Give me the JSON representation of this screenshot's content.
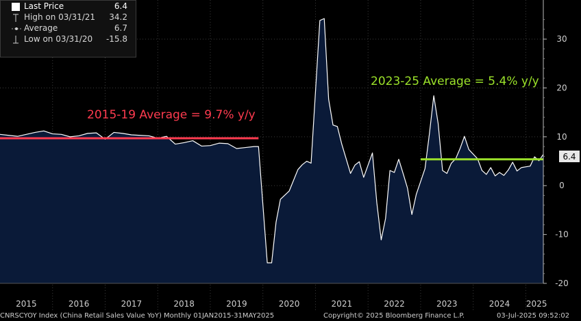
{
  "legend": {
    "last_price_label": "Last Price",
    "last_price_value": "6.4",
    "high_label": "High on 03/31/21",
    "high_value": "34.2",
    "average_label": "Average",
    "average_value": "6.7",
    "low_label": "Low on 03/31/20",
    "low_value": "-15.8"
  },
  "footer": {
    "source": "CNRSCYOY Index (China Retail Sales Value YoY)  Monthly 01JAN2015-31MAY2025",
    "copyright": "Copyright© 2025 Bloomberg Finance L.P.",
    "timestamp": "03-Jul-2025 09:52:02"
  },
  "colors": {
    "area": "#0a1a38",
    "line": "#ffffff",
    "avg1519": "#ff3b4f",
    "avg2325": "#9be22a",
    "bg": "#000000"
  },
  "chart_data": {
    "type": "area",
    "title": "",
    "series_name": "China Retail Sales Value YoY",
    "xlabel": "",
    "ylabel": "",
    "ylim": [
      -20,
      38
    ],
    "y_ticks": [
      -20,
      -10,
      0,
      10,
      20,
      30
    ],
    "year_labels": [
      "2015",
      "2016",
      "2017",
      "2018",
      "2019",
      "2020",
      "2021",
      "2022",
      "2023",
      "2024",
      "2025"
    ],
    "x_start": "2015-01",
    "x_end": "2025-05",
    "last_value_label": "6.4",
    "points": [
      [
        "2015-01",
        10.5
      ],
      [
        "2015-03",
        10.3
      ],
      [
        "2015-05",
        10.1
      ],
      [
        "2015-07",
        10.5
      ],
      [
        "2015-09",
        10.9
      ],
      [
        "2015-11",
        11.2
      ],
      [
        "2016-01",
        10.6
      ],
      [
        "2016-03",
        10.5
      ],
      [
        "2016-05",
        10.0
      ],
      [
        "2016-07",
        10.2
      ],
      [
        "2016-09",
        10.7
      ],
      [
        "2016-11",
        10.8
      ],
      [
        "2017-01",
        9.5
      ],
      [
        "2017-03",
        10.9
      ],
      [
        "2017-05",
        10.7
      ],
      [
        "2017-07",
        10.4
      ],
      [
        "2017-09",
        10.3
      ],
      [
        "2017-11",
        10.2
      ],
      [
        "2018-01",
        9.7
      ],
      [
        "2018-03",
        10.1
      ],
      [
        "2018-05",
        8.5
      ],
      [
        "2018-07",
        8.8
      ],
      [
        "2018-09",
        9.2
      ],
      [
        "2018-11",
        8.1
      ],
      [
        "2019-01",
        8.2
      ],
      [
        "2019-03",
        8.7
      ],
      [
        "2019-05",
        8.6
      ],
      [
        "2019-07",
        7.6
      ],
      [
        "2019-09",
        7.8
      ],
      [
        "2019-11",
        8.0
      ],
      [
        "2019-12",
        8.0
      ],
      [
        "2020-02",
        -15.8
      ],
      [
        "2020-03",
        -15.8
      ],
      [
        "2020-04",
        -7.5
      ],
      [
        "2020-05",
        -2.8
      ],
      [
        "2020-07",
        -1.1
      ],
      [
        "2020-09",
        3.3
      ],
      [
        "2020-10",
        4.3
      ],
      [
        "2020-11",
        5.0
      ],
      [
        "2020-12",
        4.6
      ],
      [
        "2021-02",
        33.8
      ],
      [
        "2021-03",
        34.2
      ],
      [
        "2021-04",
        17.7
      ],
      [
        "2021-05",
        12.4
      ],
      [
        "2021-06",
        12.1
      ],
      [
        "2021-07",
        8.5
      ],
      [
        "2021-09",
        2.5
      ],
      [
        "2021-10",
        4.2
      ],
      [
        "2021-11",
        4.9
      ],
      [
        "2021-12",
        1.7
      ],
      [
        "2022-02",
        6.7
      ],
      [
        "2022-03",
        -3.5
      ],
      [
        "2022-04",
        -11.1
      ],
      [
        "2022-05",
        -6.7
      ],
      [
        "2022-06",
        3.1
      ],
      [
        "2022-07",
        2.7
      ],
      [
        "2022-08",
        5.4
      ],
      [
        "2022-09",
        2.5
      ],
      [
        "2022-10",
        -0.5
      ],
      [
        "2022-11",
        -5.9
      ],
      [
        "2022-12",
        -1.8
      ],
      [
        "2023-02",
        3.5
      ],
      [
        "2023-03",
        10.6
      ],
      [
        "2023-04",
        18.4
      ],
      [
        "2023-05",
        12.7
      ],
      [
        "2023-06",
        3.1
      ],
      [
        "2023-07",
        2.5
      ],
      [
        "2023-08",
        4.6
      ],
      [
        "2023-09",
        5.5
      ],
      [
        "2023-10",
        7.6
      ],
      [
        "2023-11",
        10.1
      ],
      [
        "2023-12",
        7.4
      ],
      [
        "2024-02",
        5.5
      ],
      [
        "2024-03",
        3.1
      ],
      [
        "2024-04",
        2.3
      ],
      [
        "2024-05",
        3.7
      ],
      [
        "2024-06",
        2.0
      ],
      [
        "2024-07",
        2.7
      ],
      [
        "2024-08",
        2.1
      ],
      [
        "2024-09",
        3.2
      ],
      [
        "2024-10",
        4.8
      ],
      [
        "2024-11",
        3.0
      ],
      [
        "2024-12",
        3.7
      ],
      [
        "2025-02",
        4.0
      ],
      [
        "2025-03",
        5.9
      ],
      [
        "2025-04",
        5.1
      ],
      [
        "2025-05",
        6.4
      ]
    ],
    "averages": [
      {
        "label": "2015-19 Average = 9.7% y/y",
        "value": 9.7,
        "from": "2015-01",
        "to": "2019-12",
        "color": "#ff3b4f"
      },
      {
        "label": "2023-25 Average = 5.4% y/y",
        "value": 5.4,
        "from": "2023-01",
        "to": "2025-05",
        "color": "#9be22a"
      }
    ]
  }
}
